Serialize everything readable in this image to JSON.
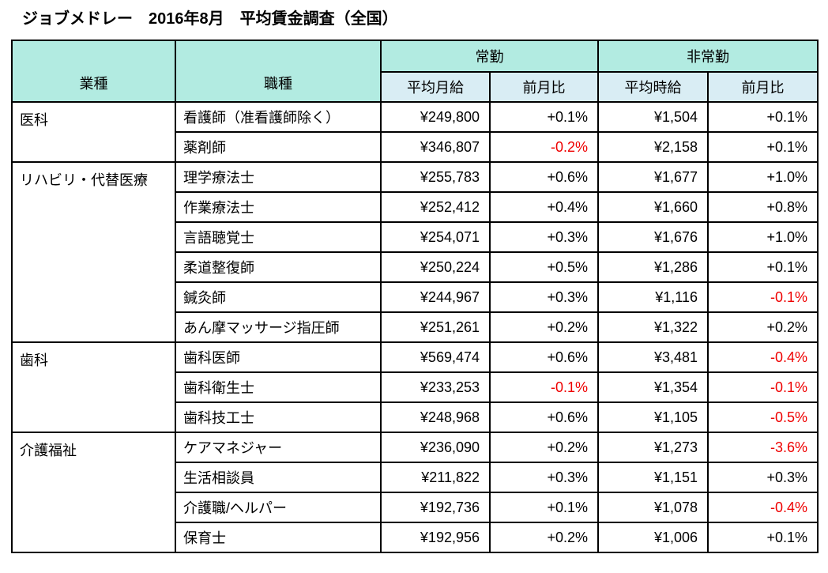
{
  "title": "ジョブメドレー　2016年8月　平均賃金調査（全国）",
  "table": {
    "headers": {
      "industry": "業種",
      "occupation": "職種",
      "fulltime": "常勤",
      "parttime": "非常勤",
      "avg_monthly": "平均月給",
      "avg_hourly": "平均時給",
      "mom": "前月比"
    },
    "colors": {
      "header_green": "#b2ebe1",
      "header_blue": "#d9edf4",
      "negative_red": "#ee0000"
    },
    "groups": [
      {
        "industry": "医科",
        "rows": [
          {
            "occupation": "看護師（准看護師除く）",
            "monthly": "¥249,800",
            "monthly_mom": "+0.1%",
            "hourly": "¥1,504",
            "hourly_mom": "+0.1%"
          },
          {
            "occupation": "薬剤師",
            "monthly": "¥346,807",
            "monthly_mom": "-0.2%",
            "hourly": "¥2,158",
            "hourly_mom": "+0.1%"
          }
        ]
      },
      {
        "industry": "リハビリ・代替医療",
        "rows": [
          {
            "occupation": "理学療法士",
            "monthly": "¥255,783",
            "monthly_mom": "+0.6%",
            "hourly": "¥1,677",
            "hourly_mom": "+1.0%"
          },
          {
            "occupation": "作業療法士",
            "monthly": "¥252,412",
            "monthly_mom": "+0.4%",
            "hourly": "¥1,660",
            "hourly_mom": "+0.8%"
          },
          {
            "occupation": "言語聴覚士",
            "monthly": "¥254,071",
            "monthly_mom": "+0.3%",
            "hourly": "¥1,676",
            "hourly_mom": "+1.0%"
          },
          {
            "occupation": "柔道整復師",
            "monthly": "¥250,224",
            "monthly_mom": "+0.5%",
            "hourly": "¥1,286",
            "hourly_mom": "+0.1%"
          },
          {
            "occupation": "鍼灸師",
            "monthly": "¥244,967",
            "monthly_mom": "+0.3%",
            "hourly": "¥1,116",
            "hourly_mom": "-0.1%"
          },
          {
            "occupation": "あん摩マッサージ指圧師",
            "monthly": "¥251,261",
            "monthly_mom": "+0.2%",
            "hourly": "¥1,322",
            "hourly_mom": "+0.2%"
          }
        ]
      },
      {
        "industry": "歯科",
        "rows": [
          {
            "occupation": "歯科医師",
            "monthly": "¥569,474",
            "monthly_mom": "+0.6%",
            "hourly": "¥3,481",
            "hourly_mom": "-0.4%"
          },
          {
            "occupation": "歯科衛生士",
            "monthly": "¥233,253",
            "monthly_mom": "-0.1%",
            "hourly": "¥1,354",
            "hourly_mom": "-0.1%"
          },
          {
            "occupation": "歯科技工士",
            "monthly": "¥248,968",
            "monthly_mom": "+0.6%",
            "hourly": "¥1,105",
            "hourly_mom": "-0.5%"
          }
        ]
      },
      {
        "industry": "介護福祉",
        "rows": [
          {
            "occupation": "ケアマネジャー",
            "monthly": "¥236,090",
            "monthly_mom": "+0.2%",
            "hourly": "¥1,273",
            "hourly_mom": "-3.6%"
          },
          {
            "occupation": "生活相談員",
            "monthly": "¥211,822",
            "monthly_mom": "+0.3%",
            "hourly": "¥1,151",
            "hourly_mom": "+0.3%"
          },
          {
            "occupation": "介護職/ヘルパー",
            "monthly": "¥192,736",
            "monthly_mom": "+0.1%",
            "hourly": "¥1,078",
            "hourly_mom": "-0.4%"
          },
          {
            "occupation": "保育士",
            "monthly": "¥192,956",
            "monthly_mom": "+0.2%",
            "hourly": "¥1,006",
            "hourly_mom": "+0.1%"
          }
        ]
      }
    ]
  },
  "chart_data": {
    "type": "table",
    "title": "ジョブメドレー　2016年8月　平均賃金調査（全国）",
    "columns": [
      "業種",
      "職種",
      "常勤 平均月給",
      "常勤 前月比",
      "非常勤 平均時給",
      "非常勤 前月比"
    ],
    "rows": [
      [
        "医科",
        "看護師（准看護師除く）",
        "¥249,800",
        "+0.1%",
        "¥1,504",
        "+0.1%"
      ],
      [
        "医科",
        "薬剤師",
        "¥346,807",
        "-0.2%",
        "¥2,158",
        "+0.1%"
      ],
      [
        "リハビリ・代替医療",
        "理学療法士",
        "¥255,783",
        "+0.6%",
        "¥1,677",
        "+1.0%"
      ],
      [
        "リハビリ・代替医療",
        "作業療法士",
        "¥252,412",
        "+0.4%",
        "¥1,660",
        "+0.8%"
      ],
      [
        "リハビリ・代替医療",
        "言語聴覚士",
        "¥254,071",
        "+0.3%",
        "¥1,676",
        "+1.0%"
      ],
      [
        "リハビリ・代替医療",
        "柔道整復師",
        "¥250,224",
        "+0.5%",
        "¥1,286",
        "+0.1%"
      ],
      [
        "リハビリ・代替医療",
        "鍼灸師",
        "¥244,967",
        "+0.3%",
        "¥1,116",
        "-0.1%"
      ],
      [
        "リハビリ・代替医療",
        "あん摩マッサージ指圧師",
        "¥251,261",
        "+0.2%",
        "¥1,322",
        "+0.2%"
      ],
      [
        "歯科",
        "歯科医師",
        "¥569,474",
        "+0.6%",
        "¥3,481",
        "-0.4%"
      ],
      [
        "歯科",
        "歯科衛生士",
        "¥233,253",
        "-0.1%",
        "¥1,354",
        "-0.1%"
      ],
      [
        "歯科",
        "歯科技工士",
        "¥248,968",
        "+0.6%",
        "¥1,105",
        "-0.5%"
      ],
      [
        "介護福祉",
        "ケアマネジャー",
        "¥236,090",
        "+0.2%",
        "¥1,273",
        "-3.6%"
      ],
      [
        "介護福祉",
        "生活相談員",
        "¥211,822",
        "+0.3%",
        "¥1,151",
        "+0.3%"
      ],
      [
        "介護福祉",
        "介護職/ヘルパー",
        "¥192,736",
        "+0.1%",
        "¥1,078",
        "-0.4%"
      ],
      [
        "介護福祉",
        "保育士",
        "¥192,956",
        "+0.2%",
        "¥1,006",
        "+0.1%"
      ]
    ],
    "notes": "negative month-over-month values rendered in red"
  }
}
